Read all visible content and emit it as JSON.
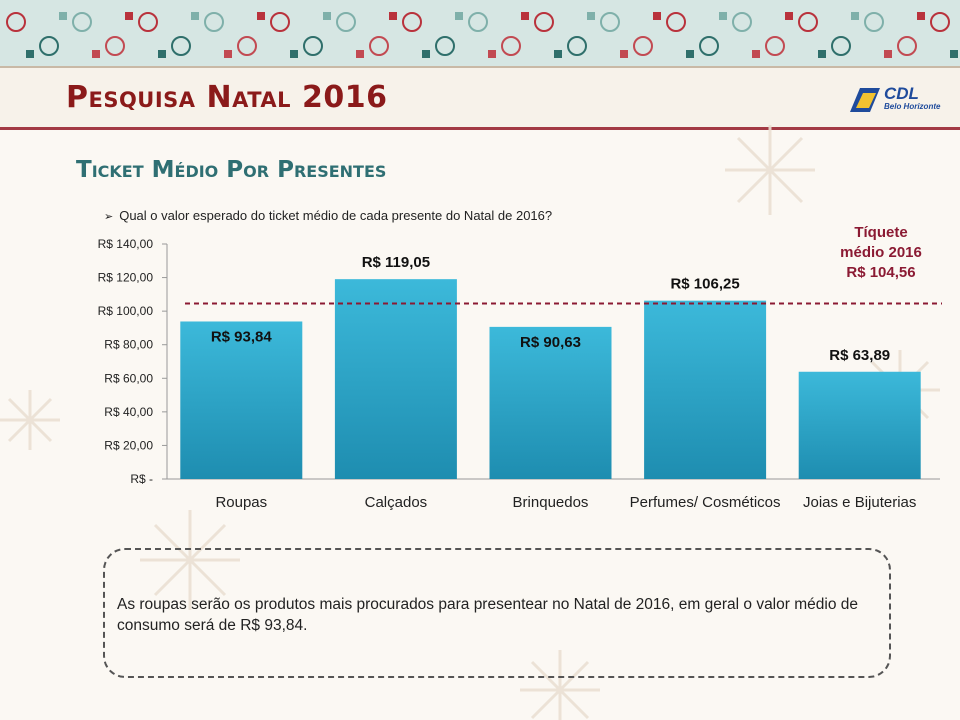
{
  "header": {
    "title": "Pesquisa Natal 2016",
    "logo_name": "CDL",
    "logo_city": "Belo Horizonte"
  },
  "section": {
    "subtitle": "Ticket Médio Por Presentes",
    "question": "Qual o valor esperado do ticket médio de cada presente do Natal de 2016?"
  },
  "reference": {
    "label_line1": "Tíquete",
    "label_line2": "médio 2016",
    "label_line3": "R$ 104,56",
    "value": 104.56,
    "color": "#8b1a33"
  },
  "chart_data": {
    "type": "bar",
    "categories": [
      "Roupas",
      "Calçados",
      "Brinquedos",
      "Perfumes/ Cosméticos",
      "Joias e Bijuterias"
    ],
    "values": [
      93.84,
      119.05,
      90.63,
      106.25,
      63.89
    ],
    "data_labels": [
      "R$ 93,84",
      "R$ 119,05",
      "R$ 90,63",
      "R$ 106,25",
      "R$ 63,89"
    ],
    "y_ticks": [
      "R$ -",
      "R$ 20,00",
      "R$ 40,00",
      "R$ 60,00",
      "R$ 80,00",
      "R$ 100,00",
      "R$ 120,00",
      "R$ 140,00"
    ],
    "ylim": [
      0,
      140
    ],
    "title": "",
    "xlabel": "",
    "ylabel": "",
    "grid": false,
    "bar_color": "#2ba7c9",
    "reference_line": 104.56
  },
  "note": {
    "text": "As roupas serão os produtos mais procurados para presentear no Natal de 2016, em geral o valor médio de consumo será de R$ 93,84."
  }
}
